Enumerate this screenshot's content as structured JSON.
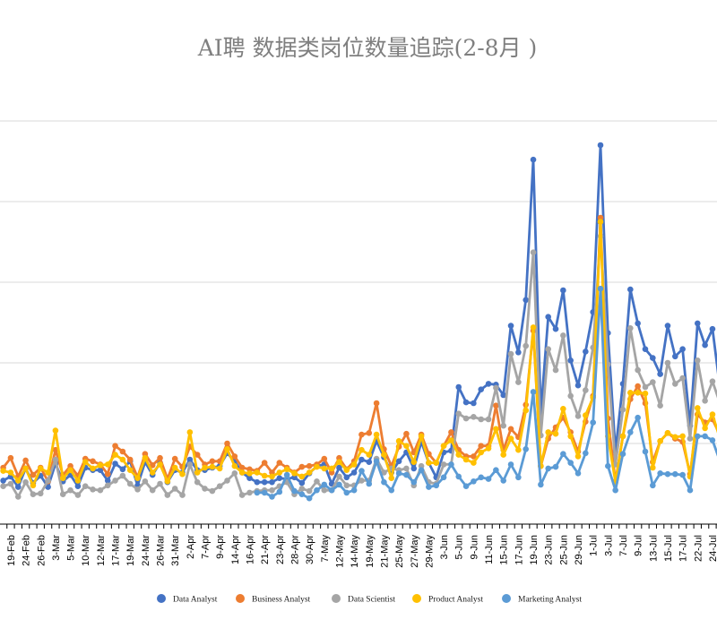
{
  "chart_data": {
    "type": "line",
    "title": "AI聘 数据类岗位数量追踪(2-8月 )",
    "xlabel": "",
    "ylabel": "",
    "ylim": [
      0,
      500
    ],
    "y_gridlines": [
      100,
      200,
      300,
      400,
      500
    ],
    "grid": true,
    "legend_position": "bottom",
    "point_count": 97,
    "x_tick_labels": [
      "19-Feb",
      "24-Feb",
      "26-Feb",
      "3-Mar",
      "5-Mar",
      "10-Mar",
      "12-Mar",
      "17-Mar",
      "19-Mar",
      "24-Mar",
      "26-Mar",
      "31-Mar",
      "2-Apr",
      "7-Apr",
      "9-Apr",
      "14-Apr",
      "16-Apr",
      "21-Apr",
      "23-Apr",
      "28-Apr",
      "30-Apr",
      "7-May",
      "12-May",
      "14-May",
      "19-May",
      "21-May",
      "25-May",
      "27-May",
      "29-May",
      "3-Jun",
      "5-Jun",
      "9-Jun",
      "11-Jun",
      "15-Jun",
      "17-Jun",
      "19-Jun",
      "23-Jun",
      "25-Jun",
      "29-Jun",
      "1-Jul",
      "3-Jul",
      "7-Jul",
      "9-Jul",
      "13-Jul",
      "15-Jul",
      "17-Jul",
      "22-Jul",
      "24-Jul"
    ],
    "series": [
      {
        "name": "Data Analyst",
        "color": "#4472C4",
        "values": [
          54,
          59,
          46,
          69,
          51,
          60,
          46,
          75,
          53,
          61,
          47,
          70,
          67,
          67,
          54,
          75,
          68,
          78,
          48,
          77,
          61,
          76,
          52,
          67,
          64,
          80,
          67,
          67,
          70,
          72,
          88,
          78,
          64,
          57,
          52,
          52,
          52,
          57,
          56,
          58,
          51,
          63,
          72,
          74,
          50,
          70,
          58,
          64,
          80,
          77,
          103,
          83,
          64,
          78,
          89,
          69,
          102,
          76,
          58,
          89,
          91,
          170,
          151,
          150,
          167,
          174,
          173,
          160,
          246,
          213,
          278,
          452,
          138,
          257,
          242,
          290,
          203,
          172,
          214,
          263,
          470,
          237,
          90,
          174,
          291,
          249,
          217,
          206,
          186,
          246,
          208,
          217,
          122,
          249,
          222,
          242,
          169
        ]
      },
      {
        "name": "Business Analyst",
        "color": "#ED7D31",
        "values": [
          70,
          82,
          59,
          79,
          61,
          70,
          53,
          92,
          61,
          72,
          60,
          81,
          78,
          74,
          62,
          97,
          90,
          80,
          58,
          87,
          73,
          82,
          56,
          81,
          71,
          96,
          86,
          74,
          78,
          78,
          100,
          84,
          70,
          68,
          66,
          76,
          64,
          76,
          70,
          64,
          71,
          72,
          74,
          81,
          64,
          82,
          68,
          78,
          111,
          113,
          150,
          93,
          72,
          96,
          112,
          89,
          111,
          87,
          76,
          97,
          114,
          92,
          84,
          84,
          97,
          97,
          147,
          92,
          118,
          108,
          148,
          240,
          72,
          106,
          120,
          132,
          114,
          90,
          127,
          159,
          380,
          131,
          53,
          109,
          155,
          171,
          150,
          77,
          103,
          113,
          106,
          102,
          62,
          136,
          126,
          130,
          110
        ]
      },
      {
        "name": "Data Scientist",
        "color": "#A5A5A5",
        "values": [
          47,
          50,
          34,
          52,
          37,
          38,
          54,
          80,
          37,
          42,
          36,
          47,
          43,
          42,
          48,
          54,
          60,
          50,
          43,
          53,
          42,
          50,
          36,
          44,
          36,
          74,
          52,
          44,
          41,
          47,
          54,
          63,
          36,
          39,
          41,
          42,
          42,
          47,
          52,
          37,
          44,
          41,
          53,
          42,
          42,
          59,
          48,
          48,
          54,
          54,
          81,
          64,
          69,
          67,
          69,
          48,
          72,
          52,
          50,
          74,
          74,
          137,
          131,
          133,
          130,
          130,
          169,
          122,
          211,
          176,
          221,
          337,
          110,
          217,
          191,
          234,
          159,
          134,
          166,
          219,
          357,
          198,
          74,
          142,
          243,
          191,
          170,
          176,
          147,
          200,
          174,
          181,
          106,
          203,
          153,
          177,
          150
        ]
      },
      {
        "name": "Product Analyst",
        "color": "#FFC000",
        "values": [
          66,
          64,
          54,
          69,
          48,
          69,
          64,
          116,
          57,
          67,
          54,
          77,
          69,
          73,
          74,
          86,
          80,
          67,
          57,
          82,
          64,
          74,
          53,
          70,
          62,
          114,
          64,
          70,
          71,
          69,
          93,
          72,
          64,
          63,
          64,
          60,
          59,
          64,
          68,
          63,
          59,
          64,
          71,
          69,
          69,
          77,
          67,
          74,
          92,
          86,
          111,
          86,
          57,
          103,
          97,
          77,
          109,
          76,
          76,
          97,
          104,
          86,
          80,
          76,
          89,
          94,
          118,
          86,
          106,
          92,
          141,
          244,
          72,
          114,
          112,
          143,
          109,
          84,
          135,
          157,
          375,
          109,
          52,
          109,
          163,
          163,
          162,
          70,
          103,
          113,
          108,
          109,
          59,
          144,
          119,
          136,
          106
        ]
      },
      {
        "name": "Marketing Analyst",
        "color": "#5B9BD5",
        "values": [
          null,
          null,
          null,
          null,
          null,
          null,
          null,
          null,
          null,
          null,
          null,
          null,
          null,
          null,
          null,
          null,
          null,
          null,
          null,
          null,
          null,
          null,
          null,
          null,
          null,
          null,
          null,
          null,
          null,
          null,
          null,
          null,
          null,
          null,
          39,
          39,
          34,
          40,
          61,
          41,
          37,
          32,
          42,
          49,
          42,
          49,
          39,
          42,
          66,
          50,
          78,
          52,
          42,
          63,
          61,
          52,
          67,
          46,
          48,
          58,
          74,
          59,
          47,
          53,
          58,
          56,
          67,
          54,
          74,
          58,
          93,
          164,
          49,
          69,
          71,
          87,
          76,
          63,
          88,
          126,
          292,
          72,
          42,
          87,
          114,
          132,
          90,
          48,
          63,
          62,
          62,
          61,
          42,
          109,
          109,
          104,
          78
        ]
      }
    ]
  }
}
